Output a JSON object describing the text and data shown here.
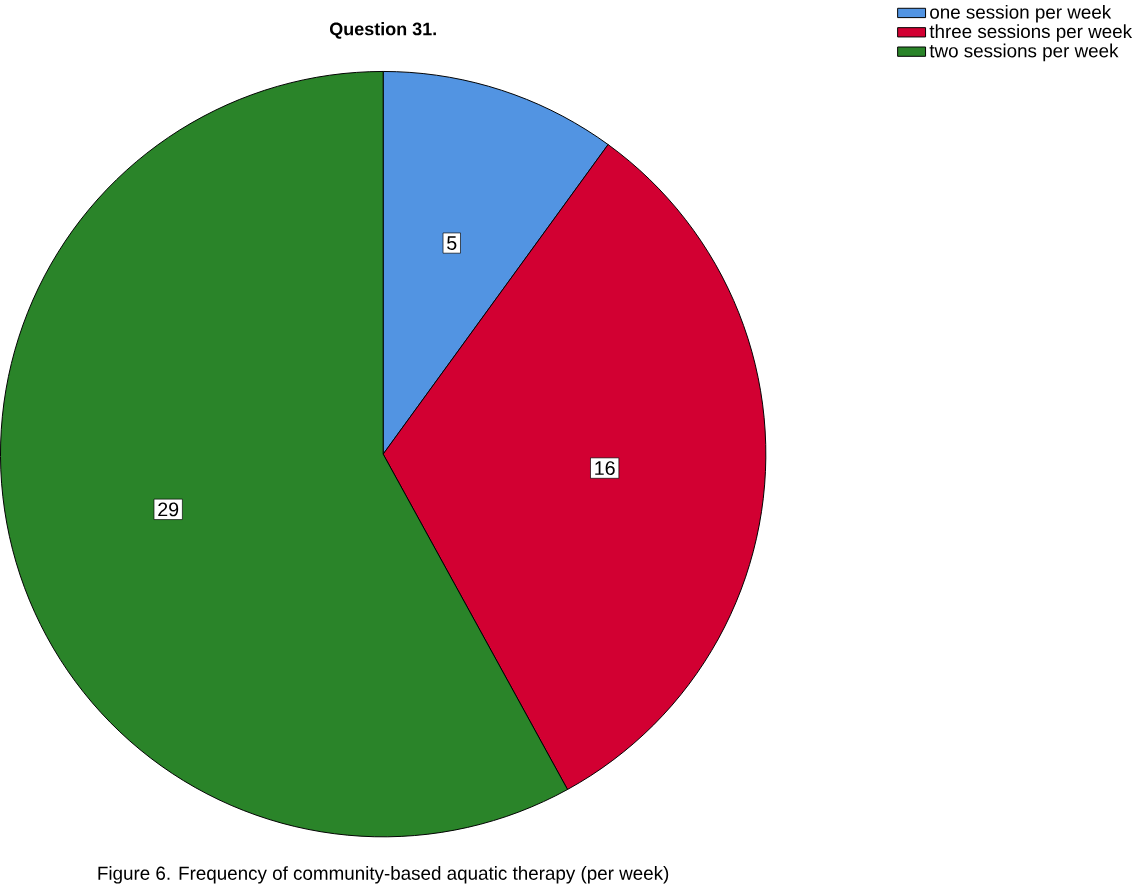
{
  "chart_data": {
    "type": "pie",
    "title": "Question 31.",
    "categories": [
      "one session per week",
      "three sessions per week",
      "two sessions per week"
    ],
    "values": [
      5,
      16,
      29
    ],
    "colors": [
      "#5294e2",
      "#d20032",
      "#2a8429"
    ],
    "data_labels": true,
    "legend": "top right",
    "annotations": [
      "Figure 6. Frequency of community-based aquatic therapy (per week)"
    ]
  }
}
